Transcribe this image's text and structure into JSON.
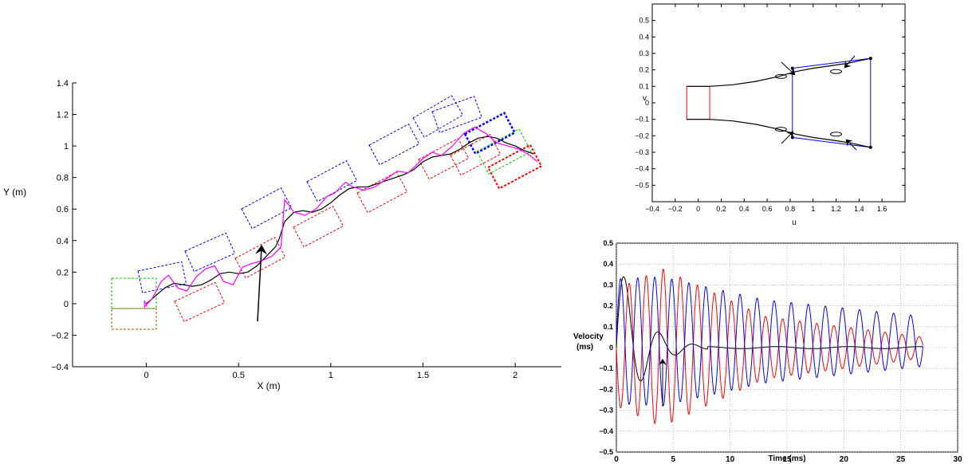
{
  "chart_data": [
    {
      "type": "line",
      "title": "",
      "xlabel": "X (m)",
      "ylabel": "Y (m)",
      "xlim": [
        -0.4,
        2.25
      ],
      "ylim": [
        -0.4,
        1.4
      ],
      "xticks": [
        0,
        0.5,
        1,
        1.5,
        2
      ],
      "xtick_labels": [
        "0",
        "0.5",
        "1",
        "1.5",
        "2"
      ],
      "yticks": [
        -0.4,
        -0.2,
        0,
        0.2,
        0.4,
        0.6,
        0.8,
        1,
        1.2,
        1.4
      ],
      "ytick_labels": [
        "−0.4",
        "−0.2",
        "0",
        "0.2",
        "0.4",
        "0.6",
        "0.8",
        "1",
        "1.2",
        "1.4"
      ],
      "grid": false,
      "colors": {
        "reference": "#000000",
        "trajectory": "#ff00ff",
        "front_box": "#0000ff",
        "rear_box": "#ff0000",
        "start_box": "#00cc00"
      },
      "series": [
        {
          "points": [
            [
              0,
              0
            ],
            [
              0.05,
              0.05
            ],
            [
              0.1,
              0.1
            ],
            [
              0.15,
              0.13
            ],
            [
              0.2,
              0.12
            ],
            [
              0.25,
              0.11
            ],
            [
              0.3,
              0.12
            ],
            [
              0.35,
              0.15
            ],
            [
              0.4,
              0.19
            ],
            [
              0.45,
              0.2
            ],
            [
              0.5,
              0.19
            ],
            [
              0.55,
              0.2
            ],
            [
              0.6,
              0.24
            ],
            [
              0.65,
              0.3
            ],
            [
              0.7,
              0.36
            ],
            [
              0.72,
              0.41
            ],
            [
              0.75,
              0.52
            ],
            [
              0.8,
              0.58
            ],
            [
              0.85,
              0.59
            ],
            [
              0.9,
              0.58
            ],
            [
              0.95,
              0.6
            ],
            [
              1,
              0.64
            ],
            [
              1.05,
              0.69
            ],
            [
              1.1,
              0.73
            ],
            [
              1.15,
              0.74
            ],
            [
              1.2,
              0.74
            ],
            [
              1.25,
              0.76
            ],
            [
              1.3,
              0.78
            ],
            [
              1.35,
              0.8
            ],
            [
              1.4,
              0.82
            ],
            [
              1.45,
              0.85
            ],
            [
              1.5,
              0.9
            ],
            [
              1.55,
              0.93
            ],
            [
              1.6,
              0.94
            ],
            [
              1.65,
              0.95
            ],
            [
              1.7,
              0.98
            ],
            [
              1.75,
              1.02
            ],
            [
              1.8,
              1.05
            ],
            [
              1.85,
              1.06
            ],
            [
              1.9,
              1.05
            ],
            [
              1.95,
              1.02
            ],
            [
              2.0,
              1.0
            ],
            [
              2.05,
              0.97
            ],
            [
              2.1,
              0.95
            ]
          ]
        },
        {
          "points": [
            [
              -0.01,
              -0.02
            ],
            [
              0.03,
              0.03
            ],
            [
              0.08,
              0.14
            ],
            [
              0.12,
              0.18
            ],
            [
              0.17,
              0.1
            ],
            [
              0.22,
              0.08
            ],
            [
              0.27,
              0.17
            ],
            [
              0.32,
              0.22
            ],
            [
              0.37,
              0.24
            ],
            [
              0.42,
              0.14
            ],
            [
              0.47,
              0.12
            ],
            [
              0.52,
              0.23
            ],
            [
              0.56,
              0.25
            ],
            [
              0.62,
              0.27
            ],
            [
              0.68,
              0.3
            ],
            [
              0.73,
              0.36
            ],
            [
              0.75,
              0.66
            ],
            [
              0.8,
              0.58
            ],
            [
              0.86,
              0.56
            ],
            [
              0.92,
              0.6
            ],
            [
              0.98,
              0.68
            ],
            [
              1.02,
              0.7
            ],
            [
              1.08,
              0.77
            ],
            [
              1.12,
              0.74
            ],
            [
              1.18,
              0.72
            ],
            [
              1.24,
              0.74
            ],
            [
              1.3,
              0.79
            ],
            [
              1.36,
              0.84
            ],
            [
              1.42,
              0.83
            ],
            [
              1.5,
              0.92
            ],
            [
              1.55,
              0.96
            ],
            [
              1.6,
              0.94
            ],
            [
              1.66,
              1.0
            ],
            [
              1.72,
              1.08
            ],
            [
              1.78,
              1.12
            ],
            [
              1.84,
              1.08
            ],
            [
              1.9,
              1.02
            ],
            [
              1.96,
              1.0
            ],
            [
              2.02,
              0.98
            ],
            [
              2.08,
              0.94
            ],
            [
              2.12,
              0.9
            ]
          ]
        }
      ]
    },
    {
      "type": "line",
      "title": "",
      "xlabel": "u",
      "ylabel": "v",
      "xlim": [
        -0.4,
        1.8
      ],
      "ylim": [
        -0.6,
        0.6
      ],
      "xticks": [
        -0.4,
        -0.2,
        0,
        0.2,
        0.4,
        0.6,
        0.8,
        1,
        1.2,
        1.4,
        1.6
      ],
      "xtick_labels": [
        "−0.4",
        "−0.2",
        "0",
        "0.2",
        "0.4",
        "0.6",
        "0.8",
        "1",
        "1.2",
        "1.4",
        "1.6"
      ],
      "yticks": [
        -0.5,
        -0.4,
        -0.3,
        -0.2,
        -0.1,
        0,
        0.1,
        0.2,
        0.3,
        0.4,
        0.5
      ],
      "ytick_labels": [
        "−0.5",
        "−0.4",
        "−0.3",
        "−0.2",
        "−0.1",
        "0",
        "0.1",
        "0.2",
        "0.3",
        "0.4",
        "0.5"
      ],
      "grid": false,
      "colors": {
        "path": "#000000",
        "inner_region": "#ff0000",
        "outer_region": "#0000ff"
      },
      "series": [
        {
          "points": [
            [
              -0.1,
              0.1
            ],
            [
              0.1,
              0.1
            ],
            [
              0.3,
              0.11
            ],
            [
              0.5,
              0.13
            ],
            [
              0.7,
              0.16
            ],
            [
              0.85,
              0.19
            ],
            [
              1.0,
              0.21
            ],
            [
              1.2,
              0.23
            ],
            [
              1.3,
              0.24
            ],
            [
              1.5,
              0.27
            ]
          ]
        },
        {
          "points": [
            [
              -0.1,
              -0.1
            ],
            [
              0.1,
              -0.1
            ],
            [
              0.3,
              -0.11
            ],
            [
              0.5,
              -0.13
            ],
            [
              0.7,
              -0.16
            ],
            [
              0.85,
              -0.19
            ],
            [
              1.0,
              -0.21
            ],
            [
              1.2,
              -0.23
            ],
            [
              1.3,
              -0.24
            ],
            [
              1.5,
              -0.27
            ]
          ]
        }
      ]
    },
    {
      "type": "line",
      "title": "",
      "xlabel": "Time (ms)",
      "ylabel": "Velocity\n(ms)",
      "xlim": [
        0,
        30
      ],
      "ylim": [
        -0.5,
        0.5
      ],
      "xticks": [
        0,
        5,
        10,
        15,
        20,
        25,
        30
      ],
      "xtick_labels": [
        "0",
        "5",
        "10",
        "15",
        "20",
        "25",
        "30"
      ],
      "yticks": [
        -0.5,
        -0.4,
        -0.3,
        -0.2,
        -0.1,
        0,
        0.1,
        0.2,
        0.3,
        0.4,
        0.5
      ],
      "ytick_labels": [
        "−0.5",
        "−0.4",
        "−0.3",
        "−0.2",
        "−0.1",
        "0",
        "0.1",
        "0.2",
        "0.3",
        "0.4",
        "0.5"
      ],
      "grid": true,
      "colors": {
        "black": "#000000",
        "red": "#ff0000",
        "blue": "#0000ff"
      },
      "series": [
        {
          "color": "#000000",
          "kind": "damped",
          "amp": 0.3,
          "period": 3.0,
          "decay": 0.5,
          "t_end": 27
        },
        {
          "color": "#ff0000",
          "kind": "oscillation",
          "amp_start": 0.28,
          "amp_peak": 0.38,
          "amp_end": 0.05,
          "period": 1.5,
          "t_end": 27
        },
        {
          "color": "#0000ff",
          "kind": "oscillation",
          "amp_start": 0.3,
          "amp_peak": 0.31,
          "amp_end": 0.12,
          "period": 1.5,
          "t_end": 27
        }
      ]
    }
  ]
}
